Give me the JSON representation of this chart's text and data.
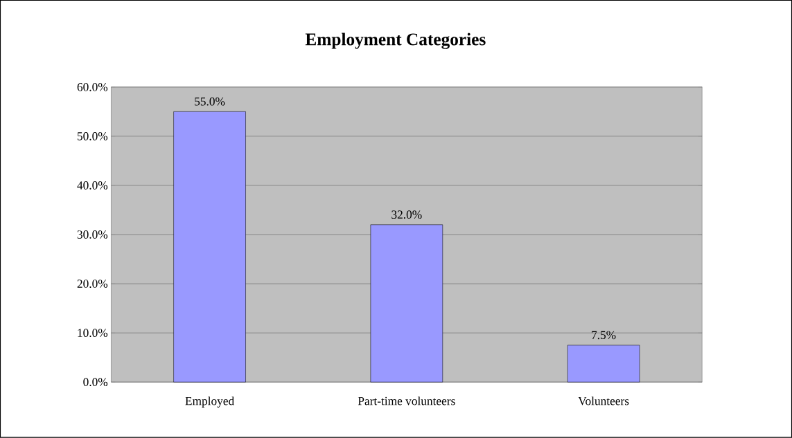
{
  "chart_data": {
    "type": "bar",
    "title": "Employment Categories",
    "categories": [
      "Employed",
      "Part-time volunteers",
      "Volunteers"
    ],
    "values": [
      55.0,
      32.0,
      7.5
    ],
    "value_labels": [
      "55.0%",
      "32.0%",
      "7.5%"
    ],
    "color": "#9999ff",
    "ylim": [
      0,
      60
    ],
    "yticks": [
      {
        "value": 0,
        "label": "0.0%"
      },
      {
        "value": 10,
        "label": "10.0%"
      },
      {
        "value": 20,
        "label": "20.0%"
      },
      {
        "value": 30,
        "label": "30.0%"
      },
      {
        "value": 40,
        "label": "40.0%"
      },
      {
        "value": 50,
        "label": "50.0%"
      },
      {
        "value": 60,
        "label": "60.0%"
      }
    ],
    "grid": "y"
  }
}
